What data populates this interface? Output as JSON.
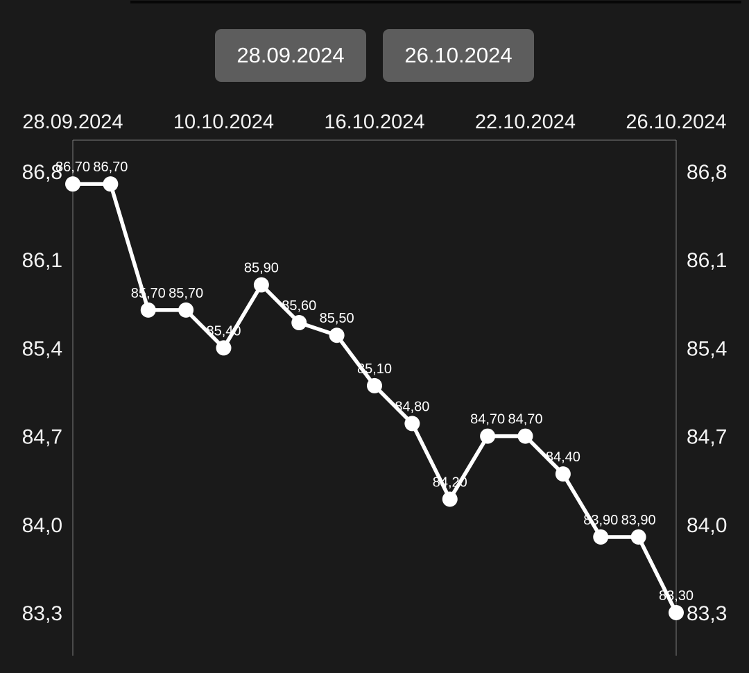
{
  "theme": {
    "background": "#1a1a1a",
    "top_strip_color": "#070707",
    "button_bg": "#5d5d5d",
    "button_text_color": "#ffffff",
    "axis_text_color": "#f2f2f2",
    "point_label_color": "#ffffff",
    "border_color": "#9a9a9a",
    "line_color": "#ffffff",
    "marker_color": "#ffffff"
  },
  "date_range": {
    "start_button_label": "28.09.2024",
    "end_button_label": "26.10.2024"
  },
  "chart_data": {
    "type": "line",
    "title": "",
    "xlabel": "",
    "ylabel": "",
    "decimal_separator": ",",
    "x_tick_labels": [
      "28.09.2024",
      "10.10.2024",
      "16.10.2024",
      "22.10.2024",
      "26.10.2024"
    ],
    "x_tick_point_indices": [
      0,
      4,
      8,
      12,
      16
    ],
    "y_tick_labels": [
      "86,8",
      "86,1",
      "85,4",
      "84,7",
      "84,0",
      "83,3"
    ],
    "y_tick_values": [
      86.8,
      86.1,
      85.4,
      84.7,
      84.0,
      83.3
    ],
    "y_axis_sides": "both",
    "ylim": [
      83.3,
      86.8
    ],
    "grid": false,
    "legend_position": "none",
    "series": [
      {
        "name": "price",
        "values": [
          86.7,
          86.7,
          85.7,
          85.7,
          85.4,
          85.9,
          85.6,
          85.5,
          85.1,
          84.8,
          84.2,
          84.7,
          84.7,
          84.4,
          83.9,
          83.9,
          83.3
        ],
        "point_labels": [
          "86,70",
          "86,70",
          "85,70",
          "85,70",
          "85,40",
          "85,90",
          "85,60",
          "85,50",
          "85,10",
          "84,80",
          "84,20",
          "84,70",
          "84,70",
          "84,40",
          "83,90",
          "83,90",
          "83,30"
        ]
      }
    ]
  }
}
